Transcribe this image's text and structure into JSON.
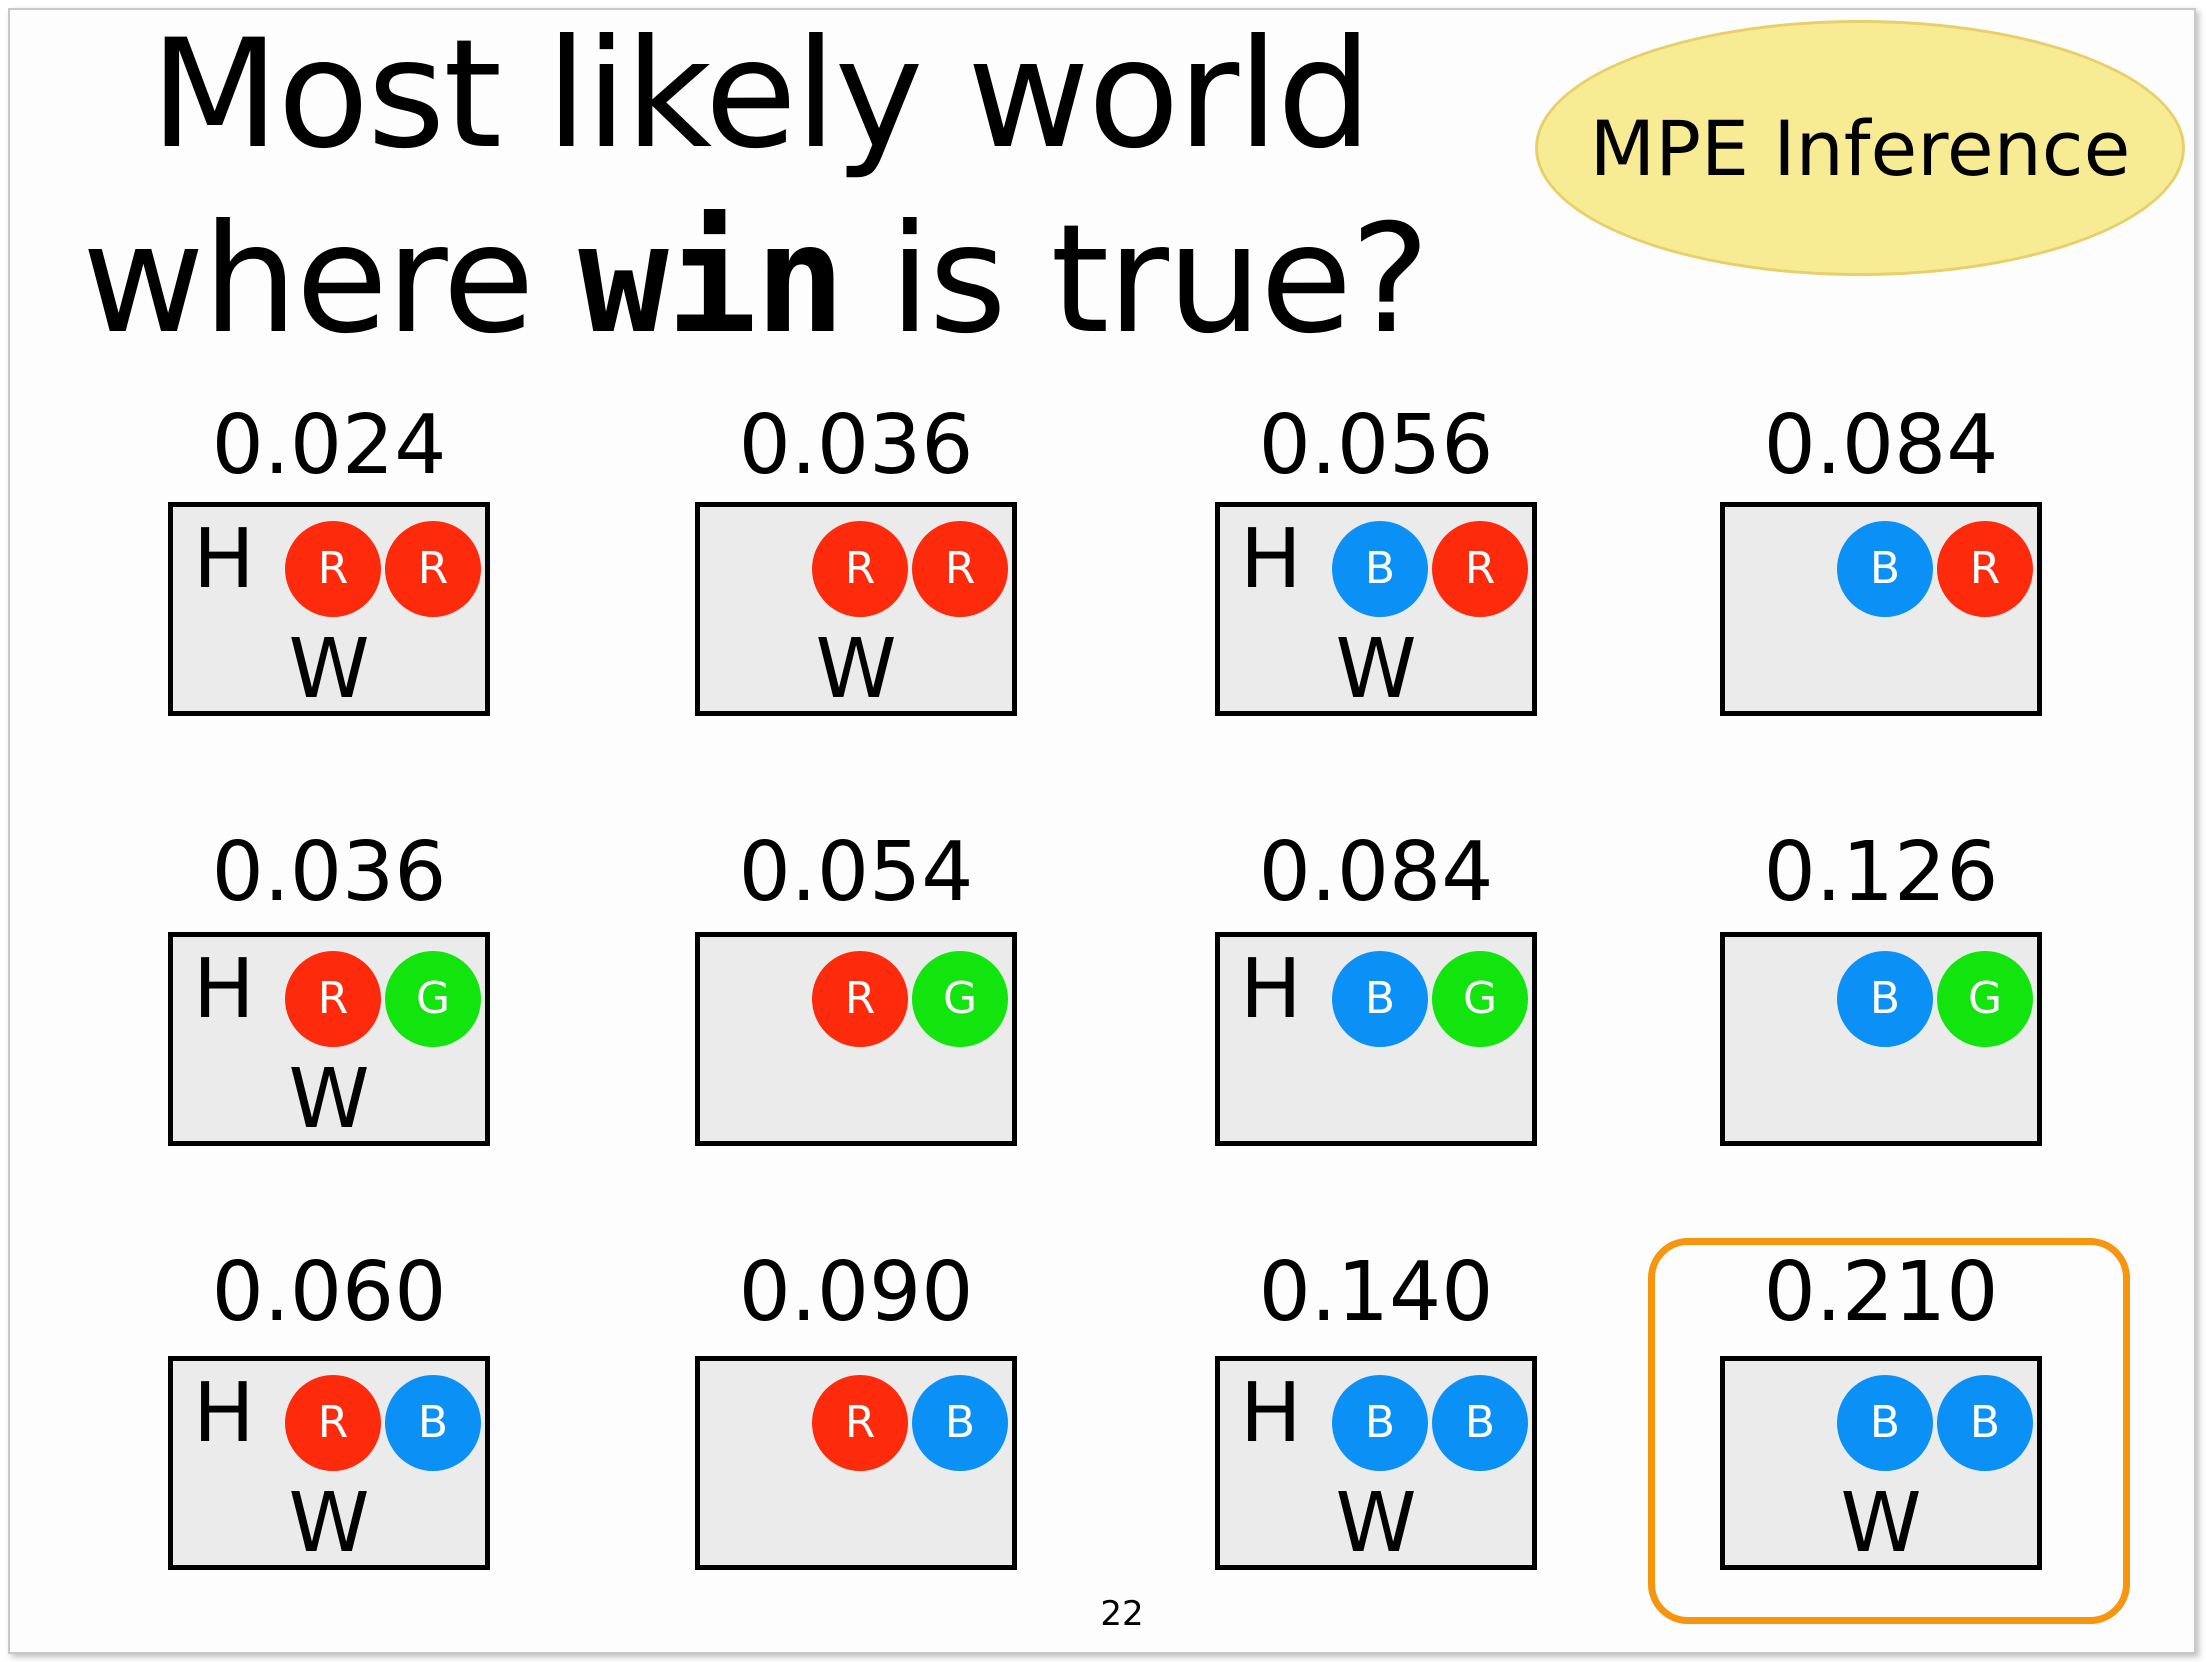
{
  "title": {
    "line1": "Most likely world",
    "line2_before": "where ",
    "line2_code": "win",
    "line2_after": " is true?"
  },
  "badge": "MPE Inference",
  "page_number": "22",
  "colors": {
    "red_ball": "#fd2b0c",
    "blue_ball": "#0b91f5",
    "green_ball": "#12e40e",
    "highlight_border": "#f7950f",
    "badge_fill": "#f7ec93",
    "world_fill": "#ebebeb"
  },
  "highlighted_world": 11,
  "worlds": [
    {
      "prob": "0.024",
      "h": "H",
      "w": "W",
      "balls": [
        {
          "label": "R",
          "color": "red"
        },
        {
          "label": "R",
          "color": "red"
        }
      ]
    },
    {
      "prob": "0.036",
      "h": "",
      "w": "W",
      "balls": [
        {
          "label": "R",
          "color": "red"
        },
        {
          "label": "R",
          "color": "red"
        }
      ]
    },
    {
      "prob": "0.056",
      "h": "H",
      "w": "W",
      "balls": [
        {
          "label": "B",
          "color": "blue"
        },
        {
          "label": "R",
          "color": "red"
        }
      ]
    },
    {
      "prob": "0.084",
      "h": "",
      "w": "",
      "balls": [
        {
          "label": "B",
          "color": "blue"
        },
        {
          "label": "R",
          "color": "red"
        }
      ]
    },
    {
      "prob": "0.036",
      "h": "H",
      "w": "W",
      "balls": [
        {
          "label": "R",
          "color": "red"
        },
        {
          "label": "G",
          "color": "green"
        }
      ]
    },
    {
      "prob": "0.054",
      "h": "",
      "w": "",
      "balls": [
        {
          "label": "R",
          "color": "red"
        },
        {
          "label": "G",
          "color": "green"
        }
      ]
    },
    {
      "prob": "0.084",
      "h": "H",
      "w": "",
      "balls": [
        {
          "label": "B",
          "color": "blue"
        },
        {
          "label": "G",
          "color": "green"
        }
      ]
    },
    {
      "prob": "0.126",
      "h": "",
      "w": "",
      "balls": [
        {
          "label": "B",
          "color": "blue"
        },
        {
          "label": "G",
          "color": "green"
        }
      ]
    },
    {
      "prob": "0.060",
      "h": "H",
      "w": "W",
      "balls": [
        {
          "label": "R",
          "color": "red"
        },
        {
          "label": "B",
          "color": "blue"
        }
      ]
    },
    {
      "prob": "0.090",
      "h": "",
      "w": "",
      "balls": [
        {
          "label": "R",
          "color": "red"
        },
        {
          "label": "B",
          "color": "blue"
        }
      ]
    },
    {
      "prob": "0.140",
      "h": "H",
      "w": "W",
      "balls": [
        {
          "label": "B",
          "color": "blue"
        },
        {
          "label": "B",
          "color": "blue"
        }
      ]
    },
    {
      "prob": "0.210",
      "h": "",
      "w": "W",
      "balls": [
        {
          "label": "B",
          "color": "blue"
        },
        {
          "label": "B",
          "color": "blue"
        }
      ]
    }
  ]
}
